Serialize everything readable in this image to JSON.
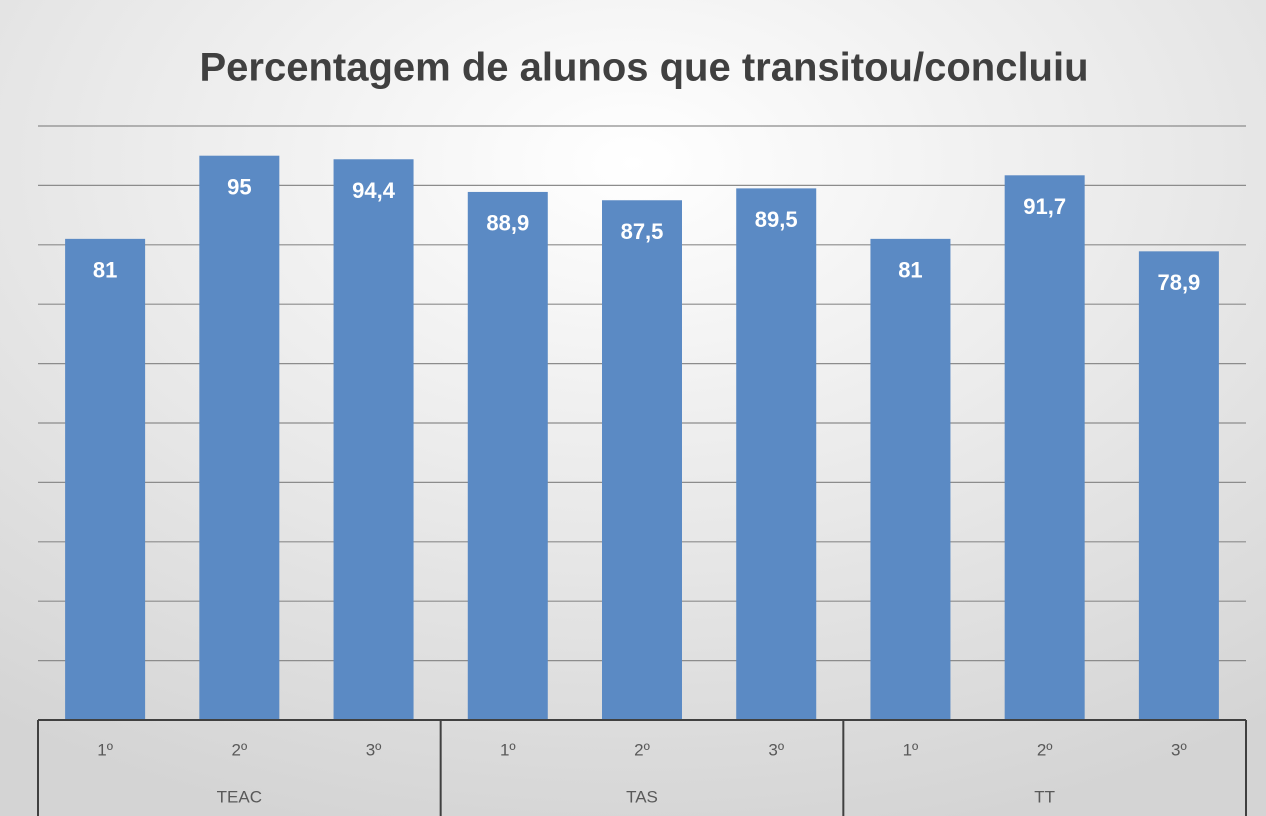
{
  "chart_data": {
    "type": "bar",
    "title": "Percentagem de alunos que transitou/concluiu",
    "categories": [
      "1º",
      "2º",
      "3º",
      "1º",
      "2º",
      "3º",
      "1º",
      "2º",
      "3º"
    ],
    "groups": [
      "TEAC",
      "TAS",
      "TT"
    ],
    "values": [
      81,
      95,
      94.4,
      88.9,
      87.5,
      89.5,
      81,
      91.7,
      78.9
    ],
    "value_labels": [
      "81",
      "95",
      "94,4",
      "88,9",
      "87,5",
      "89,5",
      "81",
      "91,7",
      "78,9"
    ],
    "color": "#5b8ac4",
    "ylim": [
      0,
      100
    ],
    "yticks": [
      0,
      10,
      20,
      30,
      40,
      50,
      60,
      70,
      80,
      90,
      100
    ],
    "grid": true
  }
}
